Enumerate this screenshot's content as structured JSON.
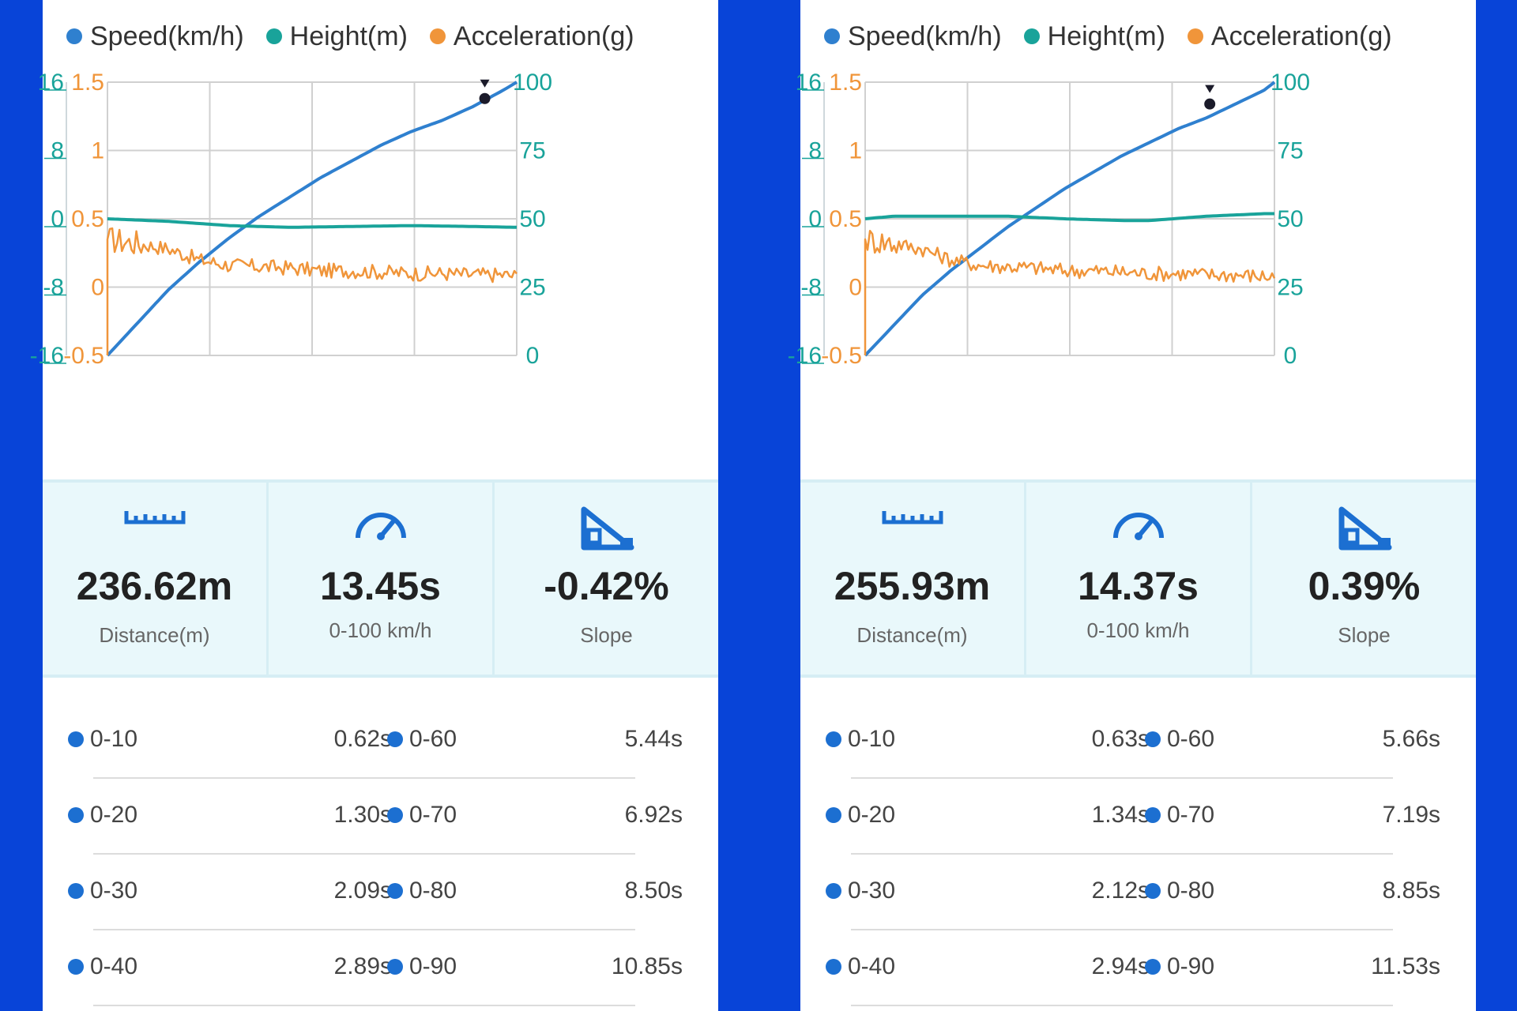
{
  "colors": {
    "speed": "#2f80cf",
    "height": "#19a39a",
    "acceleration": "#f0953a",
    "background": "#0844d8",
    "stat_bg": "#e9f8fb",
    "bullet": "#1c6fd1"
  },
  "legend": {
    "speed": "Speed(km/h)",
    "height": "Height(m)",
    "acceleration": "Acceleration(g)"
  },
  "axis_ticks": {
    "height": [
      "16",
      "8",
      "0",
      "-8",
      "-16"
    ],
    "acceleration": [
      "1.5",
      "1",
      "0.5",
      "0",
      "-0.5"
    ],
    "speed": [
      "100",
      "75",
      "50",
      "25",
      "0"
    ]
  },
  "icons": [
    "ruler-icon",
    "speedometer-icon",
    "slope-icon"
  ],
  "labels": {
    "distance": "Distance(m)",
    "zero_to_100": "0-100 km/h",
    "slope": "Slope"
  },
  "chart_data": [
    {
      "type": "line",
      "x_range": [
        0,
        13.45
      ],
      "grid": true,
      "axes": {
        "height_left": {
          "ylim": [
            -16,
            16
          ]
        },
        "acceleration_left": {
          "ylim": [
            -0.5,
            1.5
          ]
        },
        "speed_right": {
          "ylim": [
            0,
            100
          ]
        }
      },
      "series": [
        {
          "name": "Speed(km/h)",
          "axis": "speed_right",
          "x": [
            0,
            1,
            2,
            3,
            4,
            5,
            6,
            7,
            8,
            9,
            10,
            11,
            12,
            13,
            13.45
          ],
          "values": [
            0,
            12,
            24,
            34,
            43,
            51,
            58,
            65,
            71,
            77,
            82,
            86,
            91,
            97,
            100
          ]
        },
        {
          "name": "Height(m)",
          "axis": "height_left",
          "x": [
            0,
            2,
            4,
            6,
            8,
            10,
            12,
            13.45
          ],
          "values": [
            0,
            -0.3,
            -0.8,
            -1.0,
            -0.9,
            -0.8,
            -0.9,
            -1.0
          ]
        },
        {
          "name": "Acceleration(g)",
          "axis": "acceleration_left",
          "x": [
            0,
            1,
            2,
            3,
            4,
            5,
            6,
            7,
            8,
            9,
            10,
            11,
            12,
            13,
            13.45
          ],
          "values": [
            0.35,
            0.32,
            0.28,
            0.2,
            0.16,
            0.15,
            0.14,
            0.12,
            0.12,
            0.11,
            0.1,
            0.1,
            0.09,
            0.09,
            0.08
          ],
          "noise": 0.05
        }
      ],
      "marker": {
        "series": "Speed(km/h)",
        "x": 12.4,
        "y": 94
      }
    },
    {
      "type": "line",
      "x_range": [
        0,
        14.37
      ],
      "grid": true,
      "axes": {
        "height_left": {
          "ylim": [
            -16,
            16
          ]
        },
        "acceleration_left": {
          "ylim": [
            -0.5,
            1.5
          ]
        },
        "speed_right": {
          "ylim": [
            0,
            100
          ]
        }
      },
      "series": [
        {
          "name": "Speed(km/h)",
          "axis": "speed_right",
          "x": [
            0,
            1,
            2,
            3,
            4,
            5,
            6,
            7,
            8,
            9,
            10,
            11,
            12,
            13,
            14,
            14.37
          ],
          "values": [
            0,
            11,
            22,
            31,
            39,
            47,
            54,
            61,
            67,
            73,
            78,
            83,
            87,
            92,
            97,
            100
          ]
        },
        {
          "name": "Height(m)",
          "axis": "height_left",
          "x": [
            0,
            1,
            3,
            5,
            7,
            9,
            10,
            12,
            14,
            14.37
          ],
          "values": [
            0,
            0.3,
            0.3,
            0.3,
            0,
            -0.2,
            -0.2,
            0.3,
            0.6,
            0.6
          ]
        },
        {
          "name": "Acceleration(g)",
          "axis": "acceleration_left",
          "x": [
            0,
            1,
            2,
            3,
            4,
            5,
            6,
            7,
            8,
            9,
            10,
            11,
            12,
            13,
            14,
            14.37
          ],
          "values": [
            0.35,
            0.32,
            0.28,
            0.2,
            0.16,
            0.15,
            0.14,
            0.12,
            0.12,
            0.11,
            0.1,
            0.1,
            0.09,
            0.09,
            0.08,
            0.08
          ],
          "noise": 0.05
        }
      ],
      "marker": {
        "series": "Speed(km/h)",
        "x": 12.1,
        "y": 92
      }
    }
  ],
  "panels": [
    {
      "distance": "236.62m",
      "zero_to_100": "13.45s",
      "slope": "-0.42%",
      "times": [
        {
          "label1": "0-10",
          "value1": "0.62s",
          "label2": "0-60",
          "value2": "5.44s"
        },
        {
          "label1": "0-20",
          "value1": "1.30s",
          "label2": "0-70",
          "value2": "6.92s"
        },
        {
          "label1": "0-30",
          "value1": "2.09s",
          "label2": "0-80",
          "value2": "8.50s"
        },
        {
          "label1": "0-40",
          "value1": "2.89s",
          "label2": "0-90",
          "value2": "10.85s"
        }
      ]
    },
    {
      "distance": "255.93m",
      "zero_to_100": "14.37s",
      "slope": "0.39%",
      "times": [
        {
          "label1": "0-10",
          "value1": "0.63s",
          "label2": "0-60",
          "value2": "5.66s"
        },
        {
          "label1": "0-20",
          "value1": "1.34s",
          "label2": "0-70",
          "value2": "7.19s"
        },
        {
          "label1": "0-30",
          "value1": "2.12s",
          "label2": "0-80",
          "value2": "8.85s"
        },
        {
          "label1": "0-40",
          "value1": "2.94s",
          "label2": "0-90",
          "value2": "11.53s"
        }
      ]
    }
  ]
}
